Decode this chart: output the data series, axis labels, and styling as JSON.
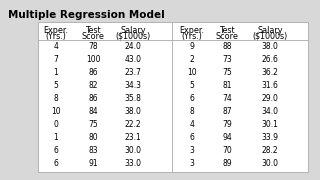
{
  "title": "Multiple Regression Model",
  "col_headers_line1": [
    "Exper.",
    "Test",
    "Salary"
  ],
  "col_headers_line2": [
    "(Yrs.)",
    "Score",
    "($1000s)"
  ],
  "left_data": [
    [
      "4",
      "78",
      "24.0"
    ],
    [
      "7",
      "100",
      "43.0"
    ],
    [
      "1",
      "86",
      "23.7"
    ],
    [
      "5",
      "82",
      "34.3"
    ],
    [
      "8",
      "86",
      "35.8"
    ],
    [
      "10",
      "84",
      "38.0"
    ],
    [
      "0",
      "75",
      "22.2"
    ],
    [
      "1",
      "80",
      "23.1"
    ],
    [
      "6",
      "83",
      "30.0"
    ],
    [
      "6",
      "91",
      "33.0"
    ]
  ],
  "right_data": [
    [
      "9",
      "88",
      "38.0"
    ],
    [
      "2",
      "73",
      "26.6"
    ],
    [
      "10",
      "75",
      "36.2"
    ],
    [
      "5",
      "81",
      "31.6"
    ],
    [
      "6",
      "74",
      "29.0"
    ],
    [
      "8",
      "87",
      "34.0"
    ],
    [
      "4",
      "79",
      "30.1"
    ],
    [
      "6",
      "94",
      "33.9"
    ],
    [
      "3",
      "70",
      "28.2"
    ],
    [
      "3",
      "89",
      "30.0"
    ]
  ],
  "bg_color": "#d8d8d8",
  "table_bg": "#f0f0f0",
  "title_fontsize": 7.5,
  "data_fontsize": 5.5,
  "header_fontsize": 5.8,
  "border_color": "#aaaaaa"
}
